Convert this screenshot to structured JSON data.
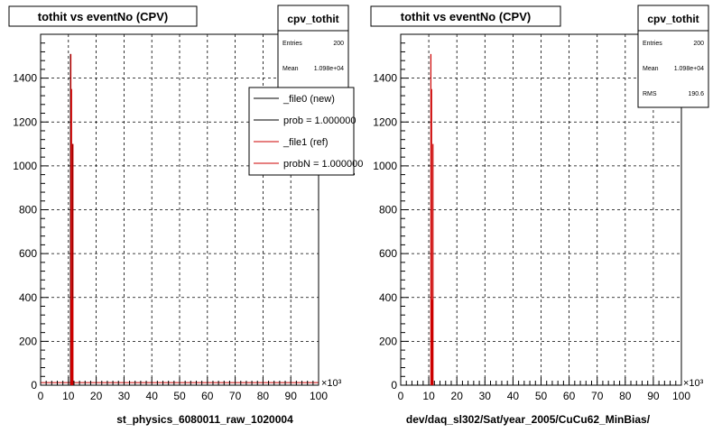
{
  "footer_note": "",
  "panels": [
    {
      "title": "tothit vs eventNo (CPV)",
      "xlabel": "st_physics_6080011_raw_1020004",
      "x_multiplier": "×10³",
      "stats": {
        "name": "cpv_tothit",
        "rows": [
          {
            "label": "Entries",
            "value": "200"
          },
          {
            "label": "Mean",
            "value": "1.098e+04"
          }
        ]
      },
      "legend": {
        "entries": [
          {
            "label": "_file0 (new)",
            "color": "#000000"
          },
          {
            "label": "prob = 1.000000",
            "color": "#000000"
          },
          {
            "label": "_file1 (ref)",
            "color": "#cc0000"
          },
          {
            "label": "probN = 1.000000",
            "color": "#cc0000"
          }
        ]
      }
    },
    {
      "title": "tothit vs eventNo (CPV)",
      "xlabel": "dev/daq_sl302/Sat/year_2005/CuCu62_MinBias/",
      "x_multiplier": "×10³",
      "stats": {
        "name": "cpv_tothit",
        "rows": [
          {
            "label": "Entries",
            "value": "200"
          },
          {
            "label": "Mean",
            "value": "1.098e+04"
          },
          {
            "label": "RMS",
            "value": "190.6"
          }
        ]
      }
    }
  ],
  "chart_data": [
    {
      "type": "bar",
      "title": "tothit vs eventNo (CPV)",
      "xlabel": "st_physics_6080011_raw_1020004",
      "ylabel": "",
      "xlim": [
        0,
        100
      ],
      "ylim": [
        0,
        1600
      ],
      "x_unit_multiplier": "10^3",
      "xticks": [
        0,
        10,
        20,
        30,
        40,
        50,
        60,
        70,
        80,
        90,
        100
      ],
      "yticks": [
        0,
        200,
        400,
        600,
        800,
        1000,
        1200,
        1400
      ],
      "grid": true,
      "legend_position": "top-right",
      "series": [
        {
          "name": "_file0 (new)",
          "color": "#000000",
          "x": [
            10.75,
            11.0,
            11.25,
            11.5,
            11.75,
            12.0
          ],
          "values": [
            1510,
            1350,
            390,
            1100,
            0,
            0
          ]
        },
        {
          "name": "_file1 (ref)",
          "color": "#cc0000",
          "x": [
            10.75,
            11.0,
            11.25,
            11.5,
            11.75,
            12.0
          ],
          "values": [
            1510,
            1350,
            390,
            1100,
            0,
            0
          ]
        }
      ],
      "baseline": {
        "color": "#cc0000",
        "value": 12
      }
    },
    {
      "type": "bar",
      "title": "tothit vs eventNo (CPV)",
      "xlabel": "dev/daq_sl302/Sat/year_2005/CuCu62_MinBias/",
      "ylabel": "",
      "xlim": [
        0,
        100
      ],
      "ylim": [
        0,
        1600
      ],
      "x_unit_multiplier": "10^3",
      "xticks": [
        0,
        10,
        20,
        30,
        40,
        50,
        60,
        70,
        80,
        90,
        100
      ],
      "yticks": [
        0,
        200,
        400,
        600,
        800,
        1000,
        1200,
        1400
      ],
      "grid": true,
      "series": [
        {
          "name": "cpv_tothit",
          "color": "#cc0000",
          "x": [
            10.75,
            11.0,
            11.25,
            11.5,
            11.75,
            12.0
          ],
          "values": [
            1510,
            1350,
            390,
            1100,
            0,
            0
          ]
        }
      ]
    }
  ]
}
